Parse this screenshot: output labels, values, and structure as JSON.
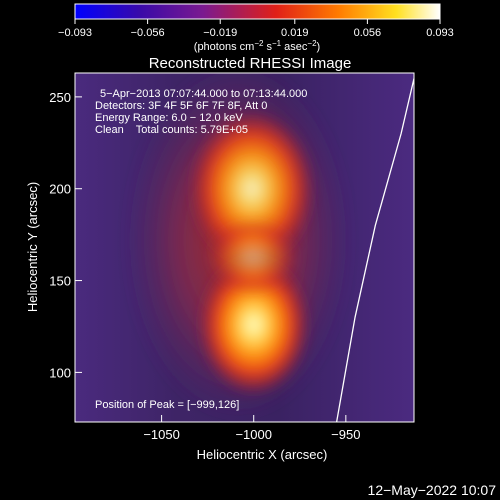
{
  "chart_data": {
    "type": "heatmap",
    "title": "Reconstructed RHESSI Image",
    "xlabel": "Heliocentric X (arcsec)",
    "ylabel": "Heliocentric Y (arcsec)",
    "xlim": [
      -1097,
      -913
    ],
    "ylim": [
      73,
      263
    ],
    "xticks": [
      -1050,
      -1000,
      -950
    ],
    "xtick_labels": [
      "−1050",
      "−1000",
      "−950"
    ],
    "yticks": [
      100,
      150,
      200,
      250
    ],
    "ytick_labels": [
      "100",
      "150",
      "200",
      "250"
    ],
    "colorbar": {
      "range": [
        -0.093,
        0.093
      ],
      "ticks": [
        -0.093,
        -0.056,
        -0.019,
        0.019,
        0.056,
        0.093
      ],
      "tick_labels": [
        "−0.093",
        "−0.056",
        "−0.019",
        "0.019",
        "0.056",
        "0.093"
      ],
      "colormap": "blue-purple-red-yellow-white",
      "unit_label_base": "(photons cm",
      "unit_label_exp1": "−2",
      "unit_label_mid": " s",
      "unit_label_exp2": "−1",
      "unit_label_mid2": " asec",
      "unit_label_exp3": "−2",
      "unit_label_end": ")"
    },
    "annotations": [
      "5−Apr−2013 07:07:44.000 to 07:13:44.000",
      "Detectors: 3F 4F 5F 6F 7F 8F, Att 0",
      "Energy Range: 6.0 − 12.0 keV",
      "Clean    Total counts: 5.79E+05"
    ],
    "peak_label": "Position of Peak = [−999,126]",
    "peak": {
      "x": -999,
      "y": 126
    },
    "sources": [
      {
        "x": -1001,
        "y": 200,
        "peak_fraction": 0.85
      },
      {
        "x": -1000,
        "y": 126,
        "peak_fraction": 1.0
      }
    ],
    "limb_curve": [
      {
        "x": -955,
        "y": 73
      },
      {
        "x": -945,
        "y": 130
      },
      {
        "x": -934,
        "y": 180
      },
      {
        "x": -920,
        "y": 230
      },
      {
        "x": -913,
        "y": 260
      }
    ],
    "timestamp": "12−May−2022 10:07"
  }
}
